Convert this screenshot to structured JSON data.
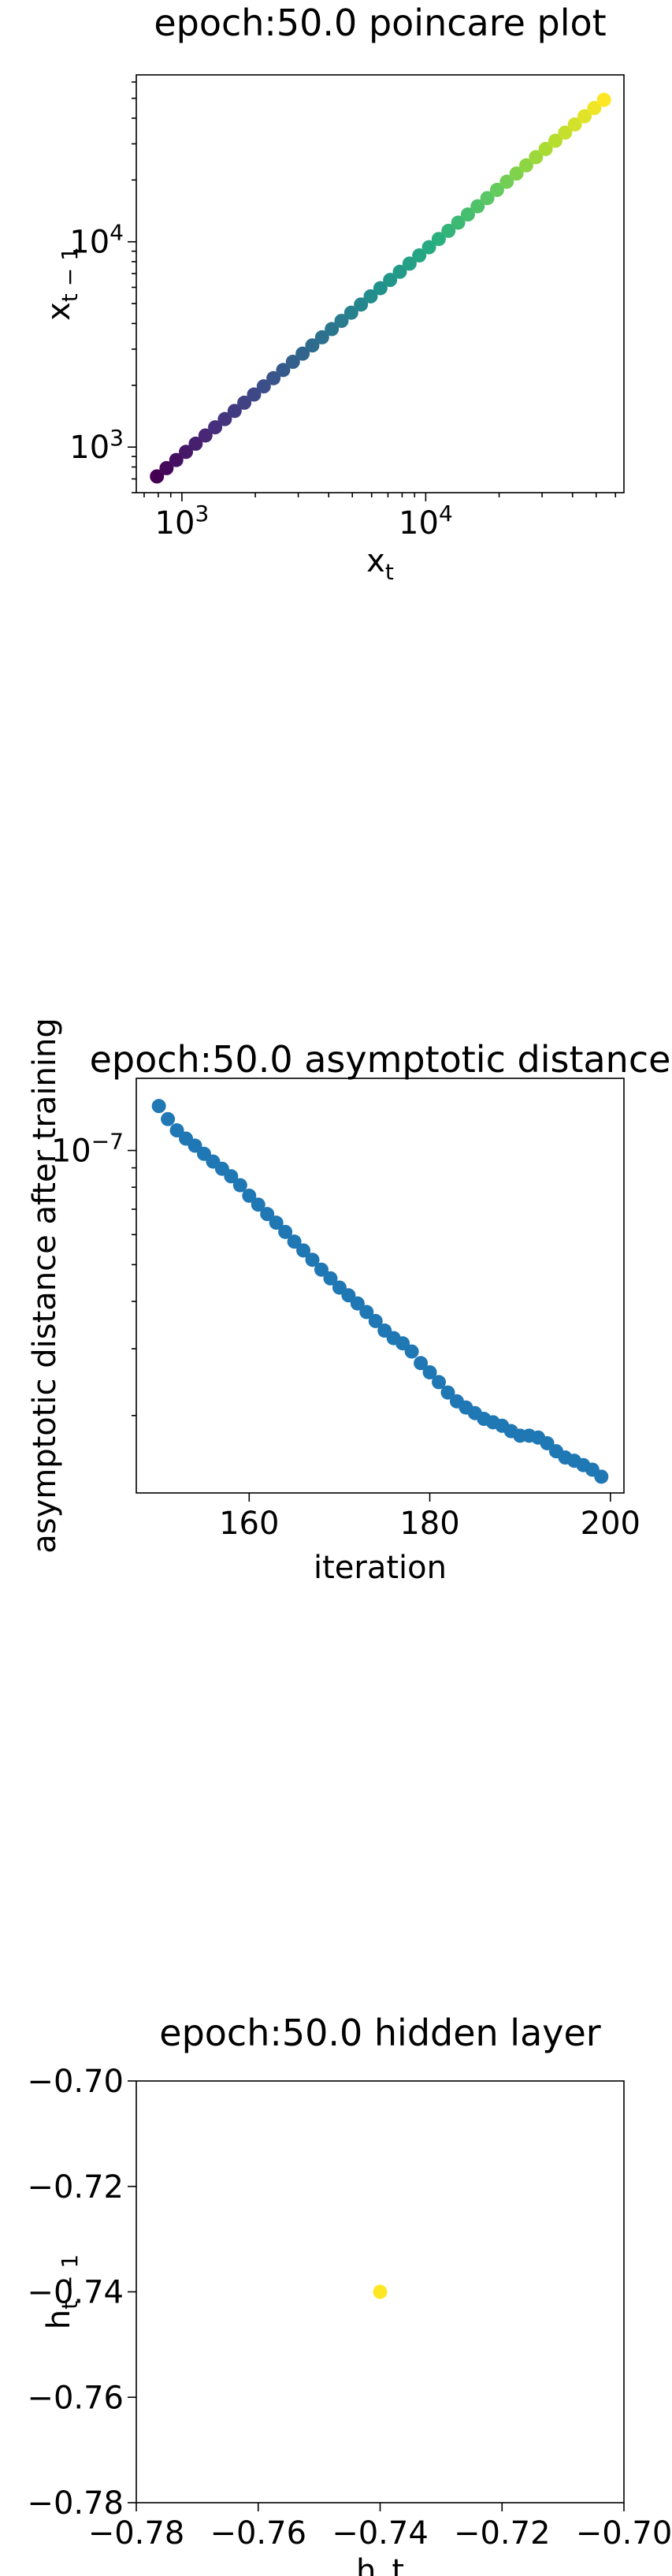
{
  "chart_data": [
    {
      "type": "scatter",
      "title": "epoch:50.0 poincare plot",
      "xlabel": "x",
      "xlabel_sub": "t",
      "ylabel": "x",
      "ylabel_sub": "t − 1",
      "xscale": "log",
      "yscale": "log",
      "xlim": [
        650,
        65000
      ],
      "ylim": [
        600,
        65000
      ],
      "x_ticks": [
        {
          "value": 1000,
          "base": "10",
          "exp": "3"
        },
        {
          "value": 10000,
          "base": "10",
          "exp": "4"
        }
      ],
      "y_ticks": [
        {
          "value": 1000,
          "base": "10",
          "exp": "3"
        },
        {
          "value": 10000,
          "base": "10",
          "exp": "4"
        }
      ],
      "colormap": [
        "#440154",
        "#472d7b",
        "#3b528b",
        "#2c728e",
        "#21918c",
        "#28ae80",
        "#5ec962",
        "#addc30",
        "#fde725"
      ],
      "x": [
        790,
        865,
        948,
        1039,
        1139,
        1249,
        1369,
        1500,
        1645,
        1803,
        1976,
        2166,
        2374,
        2602,
        2852,
        3127,
        3427,
        3757,
        4118,
        4514,
        4948,
        5424,
        5945,
        6517,
        7143,
        7830,
        8584,
        9409,
        10314,
        11306,
        12393,
        13585,
        14891,
        16323,
        17893,
        19614,
        21500,
        23568,
        25834,
        28319,
        31042,
        34027,
        37299,
        40886,
        44818,
        49128,
        53852
      ],
      "y": [
        720,
        790,
        865,
        948,
        1039,
        1139,
        1249,
        1369,
        1500,
        1645,
        1803,
        1976,
        2166,
        2374,
        2602,
        2852,
        3127,
        3427,
        3757,
        4118,
        4514,
        4948,
        5424,
        5945,
        6517,
        7143,
        7830,
        8584,
        9409,
        10314,
        11306,
        12393,
        13585,
        14891,
        16323,
        17893,
        19614,
        21500,
        23568,
        25834,
        28319,
        31042,
        34027,
        37299,
        40886,
        44818,
        49128
      ]
    },
    {
      "type": "scatter",
      "title": "epoch:50.0 asymptotic distance",
      "xlabel": "iteration",
      "ylabel": "asymptotic distance after training",
      "yscale": "log",
      "xlim": [
        147.5,
        201.5
      ],
      "ylim": [
        1.25e-08,
        1.55e-07
      ],
      "x_ticks": [
        {
          "value": 160,
          "label": "160"
        },
        {
          "value": 180,
          "label": "180"
        },
        {
          "value": 200,
          "label": "200"
        }
      ],
      "y_ticks": [
        {
          "value": 1e-07,
          "base": "10",
          "exp": "−7"
        }
      ],
      "color": "#1f77b4",
      "x": [
        150,
        151,
        152,
        153,
        154,
        155,
        156,
        157,
        158,
        159,
        160,
        161,
        162,
        163,
        164,
        165,
        166,
        167,
        168,
        169,
        170,
        171,
        172,
        173,
        174,
        175,
        176,
        177,
        178,
        179,
        180,
        181,
        182,
        183,
        184,
        185,
        186,
        187,
        188,
        189,
        190,
        191,
        192,
        193,
        194,
        195,
        196,
        197,
        198,
        199
      ],
      "y": [
        1.31e-07,
        1.21e-07,
        1.13e-07,
        1.075e-07,
        1.03e-07,
        9.8e-08,
        9.35e-08,
        8.95e-08,
        8.55e-08,
        8.1e-08,
        7.6e-08,
        7.2e-08,
        6.8e-08,
        6.45e-08,
        6.1e-08,
        5.75e-08,
        5.45e-08,
        5.15e-08,
        4.85e-08,
        4.6e-08,
        4.35e-08,
        4.15e-08,
        3.95e-08,
        3.75e-08,
        3.55e-08,
        3.35e-08,
        3.2e-08,
        3.1e-08,
        2.95e-08,
        2.75e-08,
        2.6e-08,
        2.45e-08,
        2.3e-08,
        2.18e-08,
        2.1e-08,
        2.03e-08,
        1.96e-08,
        1.92e-08,
        1.88e-08,
        1.82e-08,
        1.77e-08,
        1.77e-08,
        1.75e-08,
        1.69e-08,
        1.61e-08,
        1.55e-08,
        1.52e-08,
        1.48e-08,
        1.44e-08,
        1.38e-08
      ]
    },
    {
      "type": "scatter",
      "title": "epoch:50.0 hidden layer",
      "xlabel": "h_t",
      "ylabel": "h",
      "ylabel_sub": "t − 1",
      "xlim": [
        -0.78,
        -0.7
      ],
      "ylim": [
        -0.78,
        -0.7
      ],
      "x_ticks": [
        {
          "value": -0.78,
          "label": "−0.78"
        },
        {
          "value": -0.76,
          "label": "−0.76"
        },
        {
          "value": -0.74,
          "label": "−0.74"
        },
        {
          "value": -0.72,
          "label": "−0.72"
        },
        {
          "value": -0.7,
          "label": "−0.70"
        }
      ],
      "y_ticks": [
        {
          "value": -0.78,
          "label": "−0.78"
        },
        {
          "value": -0.76,
          "label": "−0.76"
        },
        {
          "value": -0.74,
          "label": "−0.74"
        },
        {
          "value": -0.72,
          "label": "−0.72"
        },
        {
          "value": -0.7,
          "label": "−0.70"
        }
      ],
      "color": "#fde725",
      "x": [
        -0.74
      ],
      "y": [
        -0.74
      ]
    }
  ]
}
